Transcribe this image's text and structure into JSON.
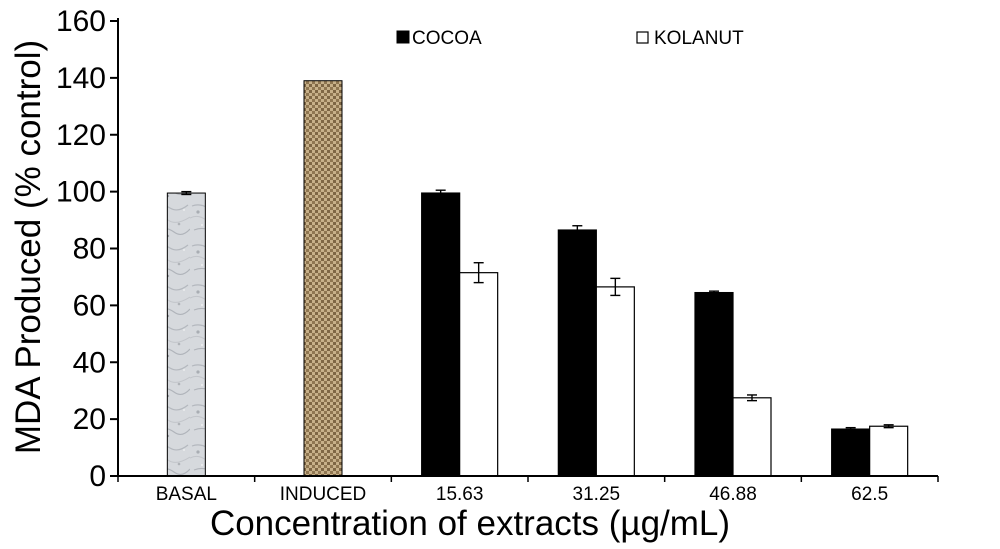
{
  "chart_data": {
    "type": "bar",
    "categories": [
      "BASAL",
      "INDUCED",
      "15.63",
      "31.25",
      "46.88",
      "62.5"
    ],
    "xlabel": "Concentration of extracts (µg/mL)",
    "ylabel": "MDA Produced (% control)",
    "ylim": [
      0,
      160
    ],
    "yticks": [
      0,
      20,
      40,
      60,
      80,
      100,
      120,
      140,
      160
    ],
    "grid": false,
    "legend_placement": "top",
    "controls": [
      {
        "category": "BASAL",
        "value": 99.5,
        "error": 0.5,
        "color": "#d4d7db",
        "pattern": "marble"
      },
      {
        "category": "INDUCED",
        "value": 139,
        "error": 0,
        "color": "#9a8058",
        "pattern": "burlap"
      }
    ],
    "series": [
      {
        "name": "COCOA",
        "color": "#000000",
        "values": [
          null,
          null,
          99.5,
          86.5,
          64.5,
          16.5
        ],
        "errors": [
          null,
          null,
          1.0,
          1.5,
          0.5,
          0.5
        ]
      },
      {
        "name": "KOLANUT",
        "color": "#ffffff",
        "values": [
          null,
          null,
          71.5,
          66.5,
          27.5,
          17.5
        ],
        "errors": [
          null,
          null,
          3.5,
          3.0,
          1.0,
          0.5
        ]
      }
    ]
  }
}
